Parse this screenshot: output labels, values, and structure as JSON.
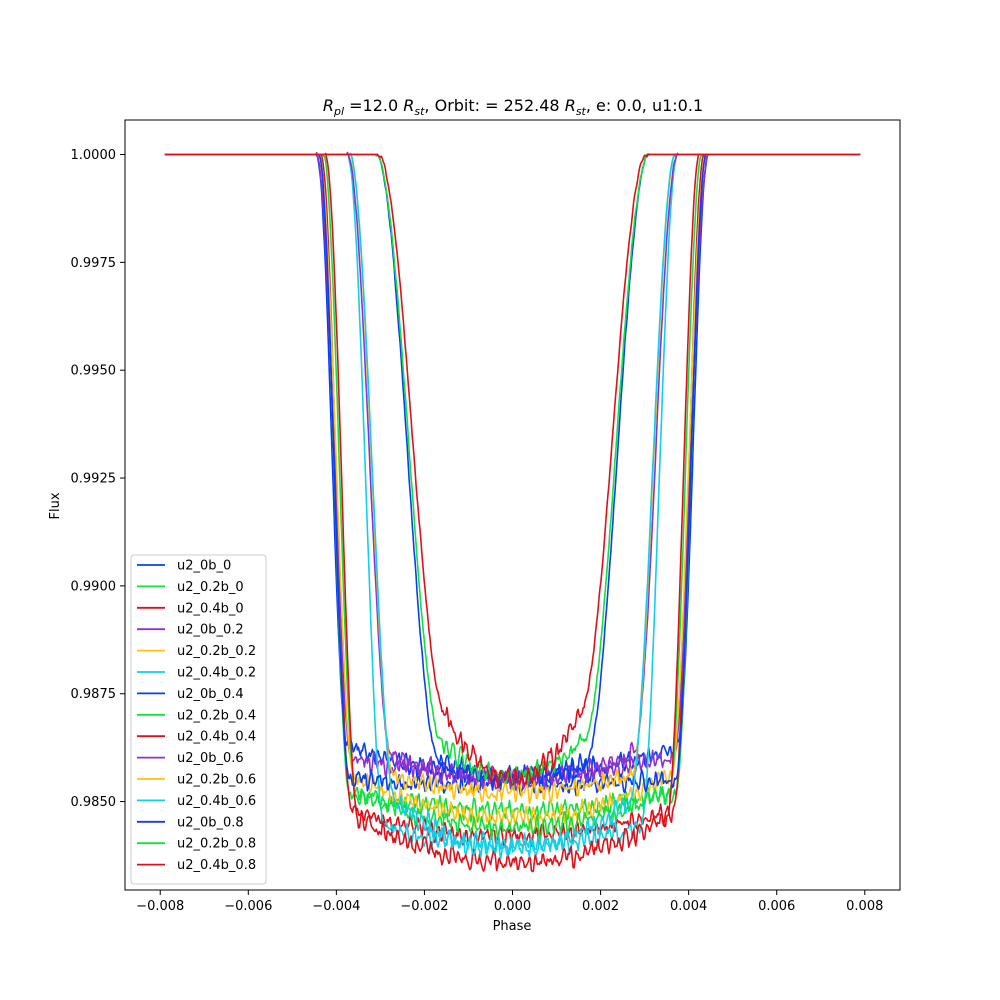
{
  "chart_data": {
    "type": "line",
    "title_parts": {
      "rpl_symbol": "R",
      "rpl_sub": "pl",
      "rpl_value": " =12.0 ",
      "rst_symbol": "R",
      "rst_sub": "st",
      "orbit_text": ", Orbit: = 252.48 ",
      "rst2_symbol": "R",
      "rst2_sub": "st",
      "tail_text": ", e: 0.0, u1:0.1"
    },
    "xlabel": "Phase",
    "ylabel": "Flux",
    "xlim": [
      -0.0088,
      0.0088
    ],
    "ylim": [
      0.98295,
      1.0008
    ],
    "xticks": [
      -0.008,
      -0.006,
      -0.004,
      -0.002,
      0.0,
      0.002,
      0.004,
      0.006,
      0.008
    ],
    "xtick_labels": [
      "−0.008",
      "−0.006",
      "−0.004",
      "−0.002",
      "0.000",
      "0.002",
      "0.004",
      "0.006",
      "0.008"
    ],
    "yticks": [
      0.985,
      0.9875,
      0.99,
      0.9925,
      0.995,
      0.9975,
      1.0
    ],
    "ytick_labels": [
      "0.9850",
      "0.9875",
      "0.9900",
      "0.9925",
      "0.9950",
      "0.9975",
      "1.0000"
    ],
    "grid": false,
    "legend_position": "lower-left",
    "x_range": [
      -0.0079,
      0.0079
    ],
    "series": [
      {
        "name": "u2_0b_0",
        "color": "#0a3ff0",
        "t1": 0.00445,
        "t2": 0.00375,
        "depth_center": 0.0144,
        "depth_edge": 0.0137
      },
      {
        "name": "u2_0.2b_0",
        "color": "#10e040",
        "t1": 0.0044,
        "t2": 0.0037,
        "depth_center": 0.0152,
        "depth_edge": 0.0148
      },
      {
        "name": "u2_0.4b_0",
        "color": "#e0101a",
        "t1": 0.00435,
        "t2": 0.00365,
        "depth_center": 0.0158,
        "depth_edge": 0.0152
      },
      {
        "name": "u2_0b_0.2",
        "color": "#9030d0",
        "t1": 0.00445,
        "t2": 0.00365,
        "depth_center": 0.0144,
        "depth_edge": 0.014
      },
      {
        "name": "u2_0.2b_0.2",
        "color": "#ffc010",
        "t1": 0.0044,
        "t2": 0.0036,
        "depth_center": 0.0154,
        "depth_edge": 0.0144
      },
      {
        "name": "u2_0.4b_0.2",
        "color": "#10d0e8",
        "t1": 0.00375,
        "t2": 0.0029,
        "depth_center": 0.016,
        "depth_edge": 0.0156
      },
      {
        "name": "u2_0b_0.4",
        "color": "#0a3ff0",
        "t1": 0.0044,
        "t2": 0.0037,
        "depth_center": 0.0146,
        "depth_edge": 0.0145
      },
      {
        "name": "u2_0.2b_0.4",
        "color": "#10e040",
        "t1": 0.0043,
        "t2": 0.00355,
        "depth_center": 0.0156,
        "depth_edge": 0.0148
      },
      {
        "name": "u2_0.4b_0.4",
        "color": "#e0101a",
        "t1": 0.00425,
        "t2": 0.0035,
        "depth_center": 0.0164,
        "depth_edge": 0.0154
      },
      {
        "name": "u2_0b_0.6",
        "color": "#9030d0",
        "t1": 0.00375,
        "t2": 0.00275,
        "depth_center": 0.0145,
        "depth_edge": 0.0139
      },
      {
        "name": "u2_0.2b_0.6",
        "color": "#ffc010",
        "t1": 0.0037,
        "t2": 0.0027,
        "depth_center": 0.0148,
        "depth_edge": 0.0144
      },
      {
        "name": "u2_0.4b_0.6",
        "color": "#10d0e8",
        "t1": 0.0037,
        "t2": 0.00265,
        "depth_center": 0.0161,
        "depth_edge": 0.015
      },
      {
        "name": "u2_0b_0.8",
        "color": "#0a3ff0",
        "t1": 0.0031,
        "t2": 0.00165,
        "depth_center": 0.0144,
        "depth_edge": 0.0141
      },
      {
        "name": "u2_0.2b_0.8",
        "color": "#10e040",
        "t1": 0.0031,
        "t2": 0.0016,
        "depth_center": 0.0144,
        "depth_edge": 0.0136
      },
      {
        "name": "u2_0.4b_0.8",
        "color": "#e0101a",
        "t1": 0.00305,
        "t2": 0.0015,
        "depth_center": 0.0145,
        "depth_edge": 0.013
      }
    ]
  }
}
